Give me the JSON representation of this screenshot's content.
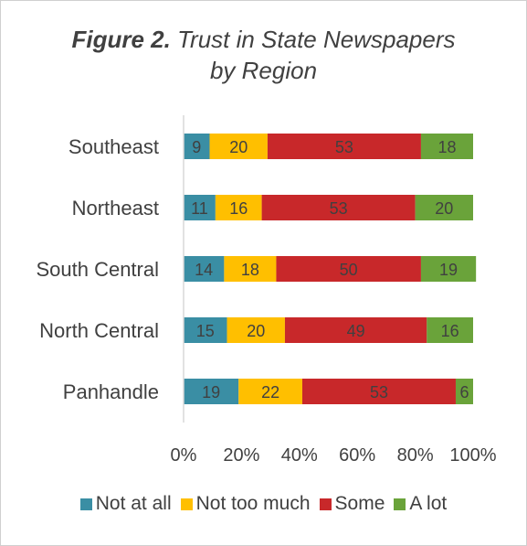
{
  "chart_data": {
    "type": "bar",
    "orientation": "horizontal",
    "stacked": "percent",
    "title_prefix": "Figure 2.",
    "title": "Trust in State Newspapers by Region",
    "title_line1": "Trust in State Newspapers",
    "title_line2": "by Region",
    "categories": [
      "Southeast",
      "Northeast",
      "South Central",
      "North Central",
      "Panhandle"
    ],
    "series": [
      {
        "name": "Not at all",
        "color": "#3a8ea4",
        "values": [
          9,
          11,
          14,
          15,
          19
        ]
      },
      {
        "name": "Not too much",
        "color": "#ffbf00",
        "values": [
          20,
          16,
          18,
          20,
          22
        ]
      },
      {
        "name": "Some",
        "color": "#c8282a",
        "values": [
          53,
          53,
          50,
          49,
          53
        ]
      },
      {
        "name": "A lot",
        "color": "#6aa33a",
        "values": [
          18,
          20,
          19,
          16,
          6
        ]
      }
    ],
    "xlim": [
      0,
      100
    ],
    "x_ticks": [
      "0%",
      "20%",
      "40%",
      "60%",
      "80%",
      "100%"
    ],
    "grid": false,
    "legend": "bottom"
  }
}
